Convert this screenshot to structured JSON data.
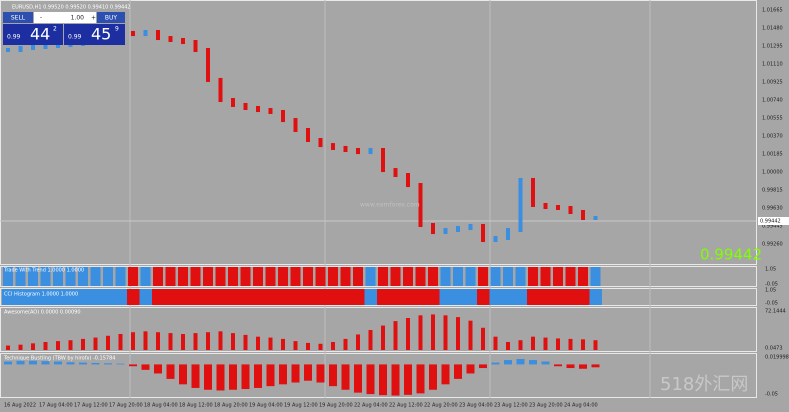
{
  "trade_panel": {
    "symbol_info": "EURUSD,H1 0.99520 0.99520 0.99410 0.99442",
    "sell": "SELL",
    "lot": "1.00",
    "buy": "BUY",
    "bid": {
      "big": "0.99",
      "pips": "44",
      "frac": "2"
    },
    "ask": {
      "big": "0.99",
      "pips": "45",
      "frac": "9"
    }
  },
  "price_axis": {
    "labels": [
      "1.01665",
      "1.01480",
      "1.01295",
      "1.01110",
      "1.00925",
      "1.00740",
      "1.00555",
      "1.00370",
      "1.00185",
      "1.00000",
      "0.99815",
      "0.99630",
      "0.99445",
      "0.99260"
    ],
    "current": "0.99442"
  },
  "price_bars": {
    "ylim": [
      0.99044,
      1.01768
    ],
    "values": [
      1.01254,
      1.01275,
      1.01285,
      1.01295,
      1.01305,
      1.01316,
      1.01336,
      1.01357,
      1.01408,
      1.01429,
      1.01418,
      1.01439,
      1.01377,
      1.01357,
      1.01336,
      1.01254,
      1.00946,
      1.0074,
      1.00689,
      1.00658,
      1.00637,
      1.00617,
      1.00534,
      1.00432,
      1.00329,
      1.00277,
      1.00247,
      1.00226,
      1.00205,
      1.00226,
      1.0002,
      0.99969,
      0.99866,
      0.99455,
      0.99383,
      0.99404,
      0.99424,
      0.99445,
      0.99301,
      0.99322,
      0.99404,
      0.99918,
      0.99661,
      0.9964,
      0.9963,
      0.99589,
      0.99527,
      0.99527
    ]
  },
  "big_price": "0.99442",
  "watermark": "www.earnforex.com",
  "indicators": {
    "trend": {
      "label": "Trade With Trend 1.0000 1.0000",
      "top": "1.05",
      "bottom": "-0.05"
    },
    "cci": {
      "label": "CCI Histogram 1.0000 1.0000",
      "top": "1.05",
      "bottom": "-0.05"
    },
    "awesome": {
      "label": "Awesome(AO) 0.0000 0.00090",
      "top": "72.1444",
      "bottom": "0.0473",
      "ylim": [
        0,
        90
      ],
      "values": [
        10,
        12,
        15,
        18,
        20,
        22,
        25,
        28,
        32,
        36,
        40,
        42,
        40,
        38,
        36,
        38,
        40,
        42,
        38,
        34,
        30,
        28,
        25,
        20,
        16,
        14,
        18,
        25,
        35,
        45,
        55,
        65,
        72,
        78,
        80,
        78,
        74,
        66,
        50,
        30,
        18,
        22,
        30,
        28,
        26,
        25,
        24,
        22
      ]
    },
    "bustling": {
      "label": "Technique Bustling (TBW by hirofx) -0.15784",
      "top": "0.019998",
      "bottom": "-0.05",
      "ylim": [
        -90,
        26
      ],
      "values": [
        8,
        10,
        10,
        9,
        8,
        6,
        5,
        4,
        3,
        2,
        -5,
        -15,
        -25,
        -40,
        -55,
        -65,
        -70,
        -72,
        -70,
        -68,
        -65,
        -60,
        -55,
        -50,
        -45,
        -50,
        -60,
        -70,
        -78,
        -82,
        -85,
        -86,
        -84,
        -80,
        -70,
        -55,
        -40,
        -25,
        -10,
        5,
        12,
        15,
        12,
        8,
        -5,
        -10,
        -12,
        -8
      ]
    }
  },
  "time_axis": [
    "16 Aug 2022",
    "17 Aug 04:00",
    "17 Aug 12:00",
    "17 Aug 20:00",
    "18 Aug 04:00",
    "18 Aug 12:00",
    "18 Aug 20:00",
    "19 Aug 04:00",
    "19 Aug 12:00",
    "19 Aug 20:00",
    "22 Aug 04:00",
    "22 Aug 12:00",
    "22 Aug 20:00",
    "23 Aug 04:00",
    "23 Aug 12:00",
    "23 Aug 20:00",
    "24 Aug 04:00"
  ],
  "site_watermark": "518外汇网"
}
